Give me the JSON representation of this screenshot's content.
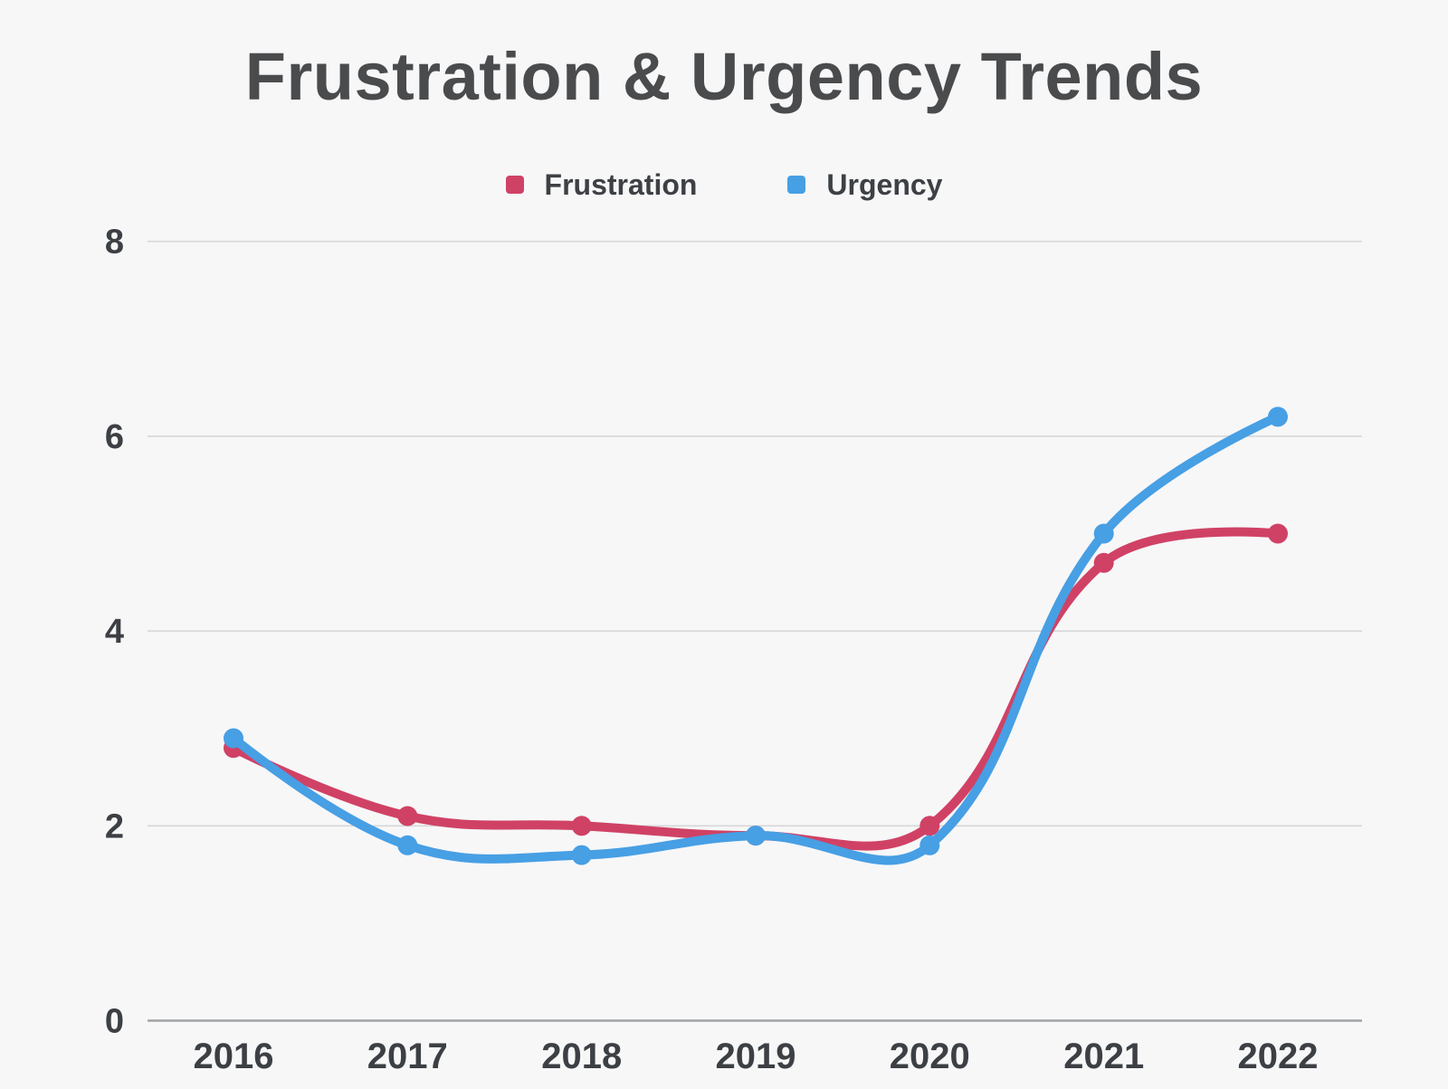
{
  "chart": {
    "title": "Frustration & Urgency Trends",
    "background_color": "#f7f7f8",
    "title_color": "#4a4b4d",
    "tick_label_color": "#3c3f43",
    "grid_color": "#d6d7d9",
    "zero_line_color": "#a0a3a5",
    "legend": {
      "items": [
        {
          "label": "Frustration",
          "color": "#d04265"
        },
        {
          "label": "Urgency",
          "color": "#479fe4"
        }
      ]
    }
  },
  "chart_data": {
    "type": "line",
    "title": "Frustration & Urgency Trends",
    "categories": [
      "2016",
      "2017",
      "2018",
      "2019",
      "2020",
      "2021",
      "2022"
    ],
    "series": [
      {
        "name": "Frustration",
        "color": "#d04265",
        "values": [
          2.8,
          2.1,
          2.0,
          1.9,
          2.0,
          4.7,
          5.0
        ]
      },
      {
        "name": "Urgency",
        "color": "#479fe4",
        "values": [
          2.9,
          1.8,
          1.7,
          1.9,
          1.8,
          5.0,
          6.2
        ]
      }
    ],
    "xlabel": "",
    "ylabel": "",
    "ylim": [
      0,
      8
    ],
    "yticks": [
      0,
      2,
      4,
      6,
      8
    ],
    "grid": "horizontal-only",
    "legend_position": "top-center",
    "curve": "smooth-bezier",
    "point_markers": true
  }
}
